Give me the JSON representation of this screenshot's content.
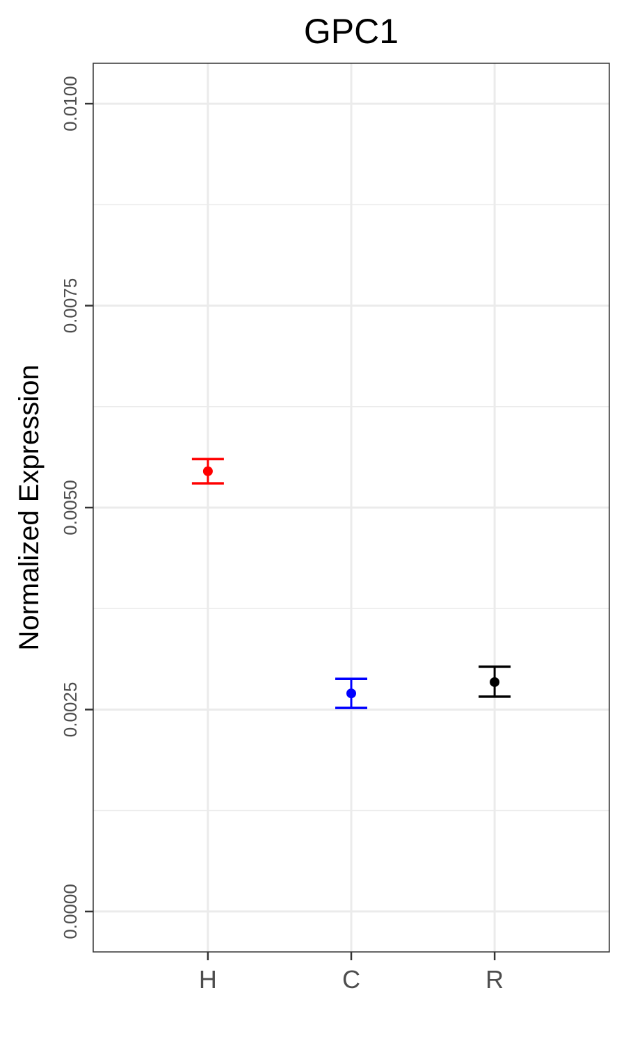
{
  "chart_data": {
    "type": "scatter",
    "title": "GPC1",
    "xlabel": "",
    "ylabel": "Normalized Expression",
    "categories": [
      "H",
      "C",
      "R"
    ],
    "y_ticks": [
      0.0,
      0.0025,
      0.005,
      0.0075,
      0.01
    ],
    "y_tick_labels": [
      "0.0000",
      "0.0025",
      "0.0050",
      "0.0075",
      "0.0100"
    ],
    "ylim": [
      -0.0005,
      0.0105
    ],
    "grid": true,
    "series": [
      {
        "points": [
          {
            "category": "H",
            "value": 0.00545,
            "error_low": 0.0053,
            "error_high": 0.0056,
            "color": "#FF0000"
          },
          {
            "category": "C",
            "value": 0.0027,
            "error_low": 0.00252,
            "error_high": 0.00288,
            "color": "#0000FF"
          },
          {
            "category": "R",
            "value": 0.00284,
            "error_low": 0.00266,
            "error_high": 0.00303,
            "color": "#000000"
          }
        ]
      }
    ],
    "colors": {
      "panel_border": "#333333",
      "grid": "#EBEBEB",
      "tick_text": "#4D4D4D"
    }
  }
}
